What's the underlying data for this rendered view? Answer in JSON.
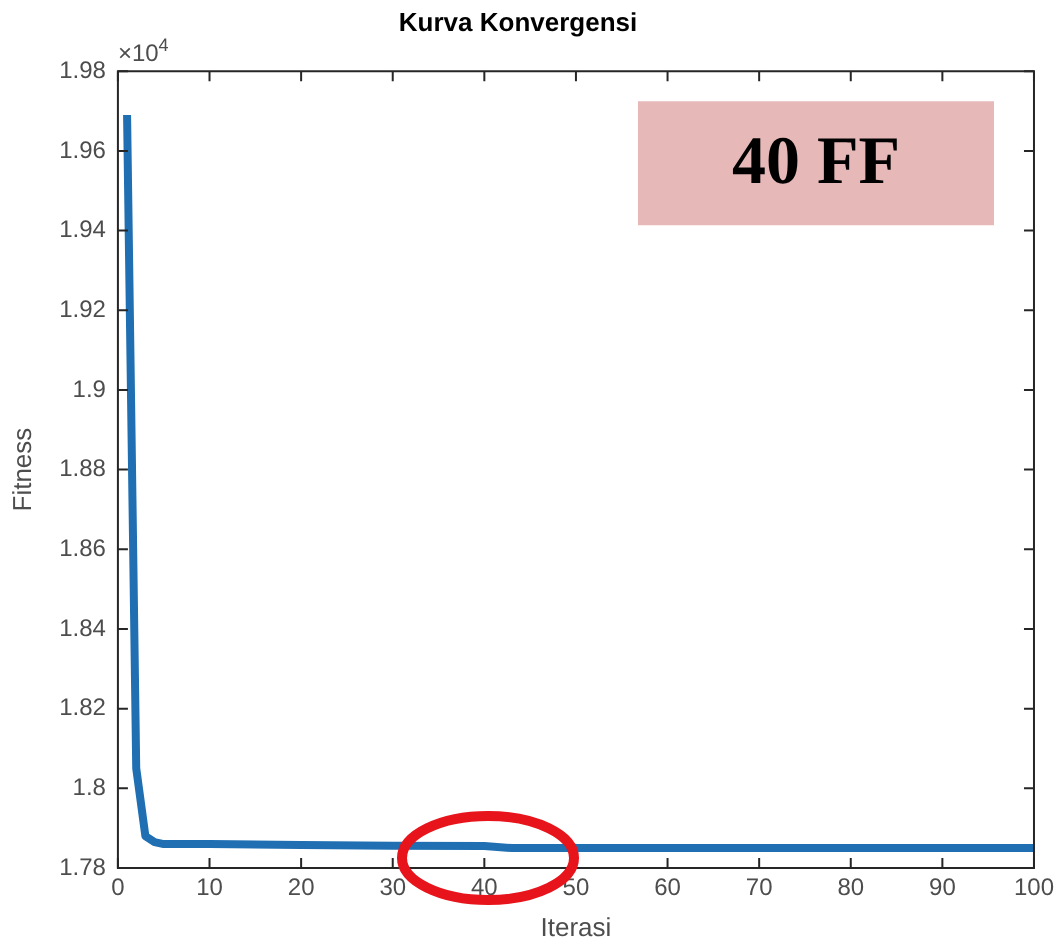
{
  "chart_data": {
    "type": "line",
    "title": "Kurva Konvergensi",
    "xlabel": "Iterasi",
    "ylabel": "Fitness",
    "annotations": [
      "×10$^{4}$",
      "40 FF"
    ],
    "x": [
      1,
      2,
      3,
      4,
      5,
      6,
      10,
      20,
      30,
      40,
      43,
      50,
      60,
      70,
      80,
      90,
      100
    ],
    "series": [
      {
        "color": "#1f6fb2",
        "values": [
          1.969,
          1.805,
          1.788,
          1.7865,
          1.786,
          1.786,
          1.786,
          1.7858,
          1.7856,
          1.7855,
          1.785,
          1.785,
          1.785,
          1.785,
          1.785,
          1.785,
          1.785
        ]
      }
    ],
    "xlim": [
      0,
      100
    ],
    "xticks": [
      0,
      10,
      20,
      30,
      40,
      50,
      60,
      70,
      80,
      90,
      100
    ],
    "ylim": [
      1.78,
      1.98
    ],
    "yticks": [
      1.78,
      1.8,
      1.82,
      1.84,
      1.86,
      1.88,
      1.9,
      1.92,
      1.94,
      1.96,
      1.98
    ],
    "grid": false,
    "legend": false,
    "marker": "none",
    "line_style": "solid"
  }
}
